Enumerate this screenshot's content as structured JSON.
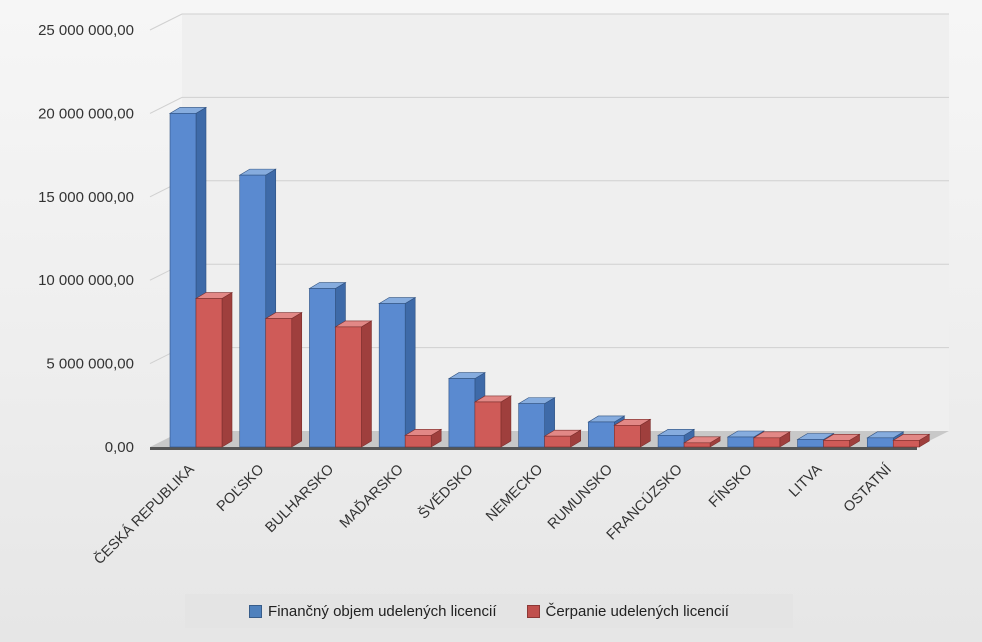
{
  "chart_data": {
    "type": "bar",
    "title": "",
    "xlabel": "",
    "ylabel": "",
    "ylim": [
      0,
      25000000
    ],
    "y_ticks": [
      "0,00",
      "5 000 000,00",
      "10 000 000,00",
      "15 000 000,00",
      "20 000 000,00",
      "25 000 000,00"
    ],
    "grid": true,
    "legend_position": "bottom",
    "categories": [
      "ČESKÁ REPUBLIKA",
      "POĽSKO",
      "BULHARSKO",
      "MAĎARSKO",
      "ŠVÉDSKO",
      "NEMECKO",
      "RUMUNSKO",
      "FRANCÚZSKO",
      "FÍNSKO",
      "LITVA",
      "OSTATNÍ"
    ],
    "series": [
      {
        "name": "Finančný objem udelených licencií",
        "color": "#4f81bd",
        "values": [
          20000000,
          16300000,
          9500000,
          8600000,
          4100000,
          2600000,
          1500000,
          700000,
          600000,
          450000,
          550000
        ]
      },
      {
        "name": "Čerpanie udelených licencií",
        "color": "#c0504d",
        "values": [
          8900000,
          7700000,
          7200000,
          700000,
          2700000,
          650000,
          1300000,
          250000,
          550000,
          400000,
          400000
        ]
      }
    ]
  }
}
